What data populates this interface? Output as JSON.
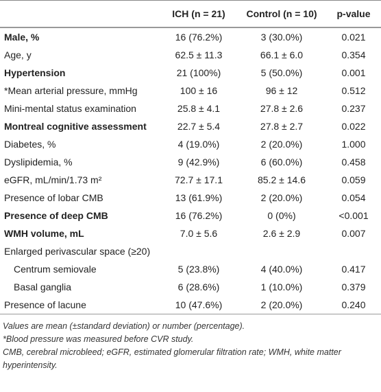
{
  "table": {
    "header": [
      "",
      "ICH (n = 21)",
      "Control (n = 10)",
      "p-value"
    ],
    "rows": [
      {
        "cells": [
          "Male, %",
          "16 (76.2%)",
          "3 (30.0%)",
          "0.021"
        ],
        "bold": true
      },
      {
        "cells": [
          "Age, y",
          "62.5 ± 11.3",
          "66.1 ± 6.0",
          "0.354"
        ]
      },
      {
        "cells": [
          "Hypertension",
          "21 (100%)",
          "5 (50.0%)",
          "0.001"
        ],
        "bold": true
      },
      {
        "cells": [
          "*Mean arterial pressure, mmHg",
          "100 ± 16",
          "96 ± 12",
          "0.512"
        ]
      },
      {
        "cells": [
          "Mini-mental status examination",
          "25.8 ± 4.1",
          "27.8 ± 2.6",
          "0.237"
        ]
      },
      {
        "cells": [
          "Montreal cognitive assessment",
          "22.7 ± 5.4",
          "27.8 ± 2.7",
          "0.022"
        ],
        "bold": true
      },
      {
        "cells": [
          "Diabetes, %",
          "4 (19.0%)",
          "2 (20.0%)",
          "1.000"
        ]
      },
      {
        "cells": [
          "Dyslipidemia, %",
          "9 (42.9%)",
          "6 (60.0%)",
          "0.458"
        ]
      },
      {
        "cells": [
          "eGFR, mL/min/1.73 m²",
          "72.7 ± 17.1",
          "85.2 ± 14.6",
          "0.059"
        ]
      },
      {
        "cells": [
          "Presence of lobar CMB",
          "13 (61.9%)",
          "2 (20.0%)",
          "0.054"
        ]
      },
      {
        "cells": [
          "Presence of deep CMB",
          "16 (76.2%)",
          "0 (0%)",
          "<0.001"
        ],
        "bold": true
      },
      {
        "cells": [
          "WMH volume, mL",
          "7.0 ± 5.6",
          "2.6 ± 2.9",
          "0.007"
        ],
        "bold": true
      },
      {
        "cells": [
          "Enlarged perivascular space (≥20)"
        ]
      },
      {
        "cells": [
          "Centrum semiovale",
          "5 (23.8%)",
          "4 (40.0%)",
          "0.417"
        ],
        "indent": true
      },
      {
        "cells": [
          "Basal ganglia",
          "6 (28.6%)",
          "1 (10.0%)",
          "0.379"
        ],
        "indent": true
      },
      {
        "cells": [
          "Presence of lacune",
          "10 (47.6%)",
          "2 (20.0%)",
          "0.240"
        ]
      }
    ],
    "notes": [
      "Values are mean (±standard deviation) or number (percentage).",
      "*Blood pressure was measured before CVR study.",
      "CMB, cerebral microbleed; eGFR, estimated glomerular filtration rate; WMH, white matter hyperintensity."
    ]
  }
}
